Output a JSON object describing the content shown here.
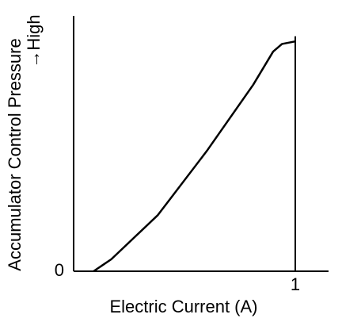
{
  "chart_data": {
    "type": "line",
    "xlabel": "Electric Current (A)",
    "ylabel": [
      "Accumulator Control Pressure",
      "→High"
    ],
    "x": [
      0.09,
      0.17,
      0.38,
      0.6,
      0.81,
      0.9,
      0.94,
      1.0
    ],
    "values": [
      0,
      0.047,
      0.22,
      0.47,
      0.73,
      0.86,
      0.89,
      0.9
    ],
    "color": "#000000",
    "xlim": [
      0,
      1.15
    ],
    "xticks": [
      1
    ],
    "ylim": [
      0,
      1
    ],
    "yticks": [
      0
    ]
  }
}
